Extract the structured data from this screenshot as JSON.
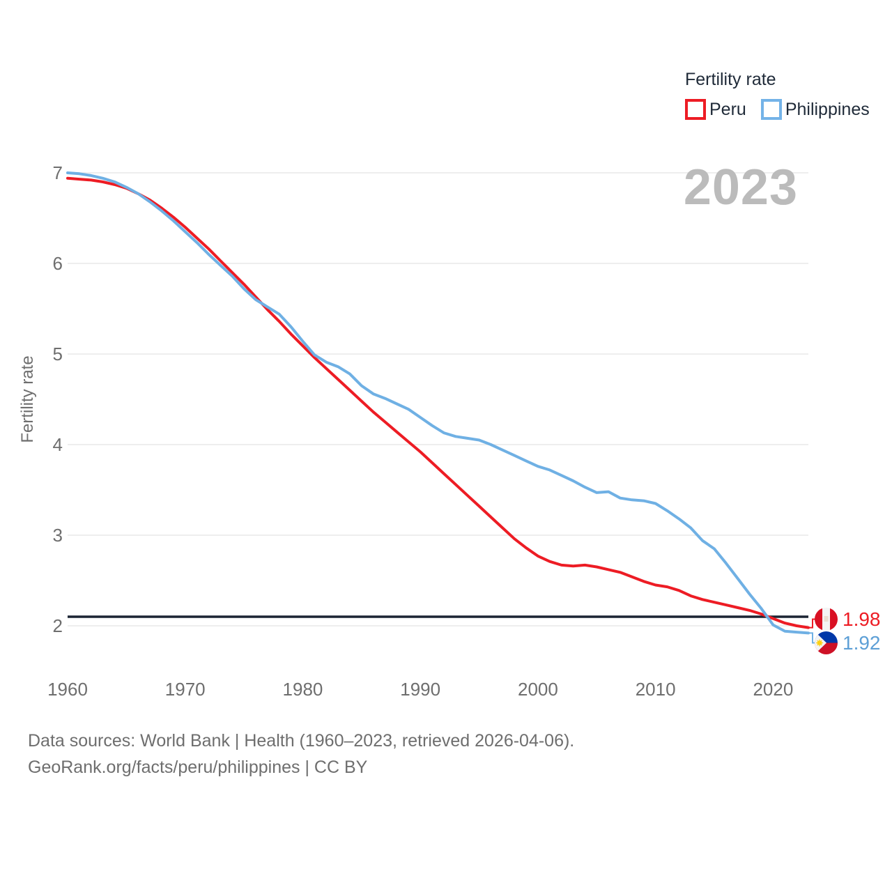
{
  "legend": {
    "title": "Fertility rate",
    "items": [
      {
        "label": "Peru",
        "color": "#ed1c24"
      },
      {
        "label": "Philippines",
        "color": "#74b3e8"
      }
    ]
  },
  "watermark": "2023",
  "y_axis_title": "Fertility rate",
  "end_labels": [
    {
      "series": "Peru",
      "value": "1.98",
      "flag": "peru-flag",
      "color": "#ed1c24"
    },
    {
      "series": "Philippines",
      "value": "1.92",
      "flag": "philippines-flag",
      "color": "#74b3e8"
    }
  ],
  "source": {
    "line1": "Data sources: World Bank | Health (1960–2023, retrieved 2026-04-06).",
    "line2": "GeoRank.org/facts/peru/philippines | CC BY"
  },
  "chart_data": {
    "type": "line",
    "title": "Fertility rate",
    "ylabel": "Fertility rate",
    "xlabel": "",
    "x": [
      1960,
      1961,
      1962,
      1963,
      1964,
      1965,
      1966,
      1967,
      1968,
      1969,
      1970,
      1971,
      1972,
      1973,
      1974,
      1975,
      1976,
      1977,
      1978,
      1979,
      1980,
      1981,
      1982,
      1983,
      1984,
      1985,
      1986,
      1987,
      1988,
      1989,
      1990,
      1991,
      1992,
      1993,
      1994,
      1995,
      1996,
      1997,
      1998,
      1999,
      2000,
      2001,
      2002,
      2003,
      2004,
      2005,
      2006,
      2007,
      2008,
      2009,
      2010,
      2011,
      2012,
      2013,
      2014,
      2015,
      2016,
      2017,
      2018,
      2019,
      2020,
      2021,
      2022,
      2023
    ],
    "series": [
      {
        "name": "Peru",
        "color": "#ed1c24",
        "end_label": "1.98",
        "values": [
          6.94,
          6.93,
          6.92,
          6.9,
          6.87,
          6.83,
          6.77,
          6.7,
          6.61,
          6.51,
          6.4,
          6.28,
          6.16,
          6.03,
          5.9,
          5.77,
          5.63,
          5.49,
          5.36,
          5.22,
          5.09,
          4.96,
          4.84,
          4.72,
          4.6,
          4.48,
          4.36,
          4.25,
          4.14,
          4.03,
          3.92,
          3.8,
          3.68,
          3.56,
          3.44,
          3.32,
          3.2,
          3.08,
          2.96,
          2.86,
          2.77,
          2.71,
          2.67,
          2.66,
          2.67,
          2.65,
          2.62,
          2.59,
          2.54,
          2.49,
          2.45,
          2.43,
          2.39,
          2.33,
          2.29,
          2.26,
          2.23,
          2.2,
          2.17,
          2.13,
          2.08,
          2.03,
          2.0,
          1.98
        ]
      },
      {
        "name": "Philippines",
        "color": "#6fb0e4",
        "end_label": "1.92",
        "values": [
          7.0,
          6.99,
          6.97,
          6.94,
          6.9,
          6.84,
          6.77,
          6.68,
          6.58,
          6.47,
          6.35,
          6.23,
          6.1,
          5.98,
          5.86,
          5.72,
          5.6,
          5.52,
          5.44,
          5.3,
          5.14,
          4.99,
          4.91,
          4.86,
          4.78,
          4.65,
          4.56,
          4.51,
          4.45,
          4.39,
          4.3,
          4.21,
          4.13,
          4.09,
          4.07,
          4.05,
          4.0,
          3.94,
          3.88,
          3.82,
          3.76,
          3.72,
          3.66,
          3.6,
          3.53,
          3.47,
          3.48,
          3.41,
          3.39,
          3.38,
          3.35,
          3.27,
          3.18,
          3.08,
          2.94,
          2.85,
          2.69,
          2.52,
          2.35,
          2.19,
          2.01,
          1.94,
          1.93,
          1.92
        ]
      }
    ],
    "xlim": [
      1960,
      2023
    ],
    "ylim": [
      2,
      7
    ],
    "y_ticks": [
      2,
      3,
      4,
      5,
      6,
      7
    ],
    "x_ticks": [
      1960,
      1970,
      1980,
      1990,
      2000,
      2010,
      2020
    ],
    "reference_line": {
      "value": 2.1,
      "color": "#1b2433"
    },
    "grid": "horizontal",
    "legend_position": "top-right",
    "watermark": "2023"
  }
}
